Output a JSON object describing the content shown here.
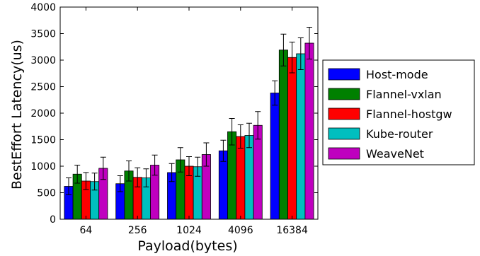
{
  "chart_data": {
    "type": "bar",
    "xlabel": "Payload(bytes)",
    "ylabel": "BestEffort Latency(us)",
    "categories": [
      "64",
      "256",
      "1024",
      "4096",
      "16384"
    ],
    "ylim": [
      0,
      4000
    ],
    "yticks": [
      0,
      500,
      1000,
      1500,
      2000,
      2500,
      3000,
      3500,
      4000
    ],
    "grid": false,
    "legend_position": "right",
    "series": [
      {
        "name": "Host-mode",
        "color": "#0000ff",
        "values": [
          620,
          670,
          880,
          1290,
          2380
        ],
        "errors": [
          160,
          150,
          170,
          200,
          230
        ]
      },
      {
        "name": "Flannel-vxlan",
        "color": "#008000",
        "values": [
          850,
          910,
          1120,
          1650,
          3190
        ],
        "errors": [
          170,
          190,
          230,
          250,
          300
        ]
      },
      {
        "name": "Flannel-hostgw",
        "color": "#ff0000",
        "values": [
          720,
          790,
          1000,
          1560,
          3050
        ],
        "errors": [
          160,
          180,
          180,
          220,
          290
        ]
      },
      {
        "name": "Kube-router",
        "color": "#00bfbf",
        "values": [
          710,
          780,
          990,
          1580,
          3120
        ],
        "errors": [
          160,
          170,
          180,
          230,
          300
        ]
      },
      {
        "name": "WeaveNet",
        "color": "#bf00bf",
        "values": [
          960,
          1020,
          1220,
          1770,
          3320
        ],
        "errors": [
          210,
          190,
          220,
          260,
          300
        ]
      }
    ]
  }
}
